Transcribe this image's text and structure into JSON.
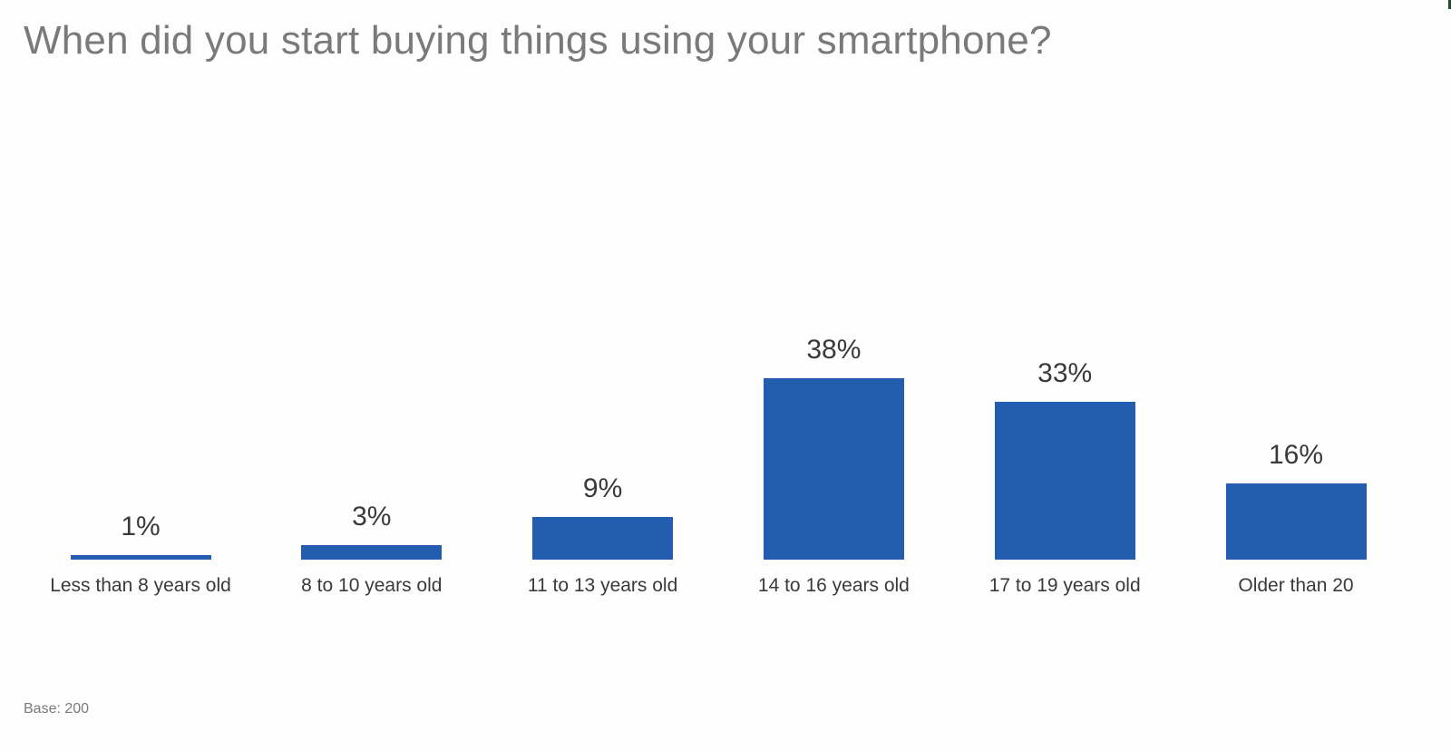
{
  "title": "When did you start buying things using your smartphone?",
  "footnote": "Base: 200",
  "colors": {
    "bar": "#235daf",
    "title": "#7a7a7a",
    "label": "#3a3a3a"
  },
  "chart_data": {
    "type": "bar",
    "title": "When did you start buying things using your smartphone?",
    "categories": [
      "Less than 8 years old",
      "8 to 10 years old",
      "11 to 13 years old",
      "14 to 16 years old",
      "17 to 19 years old",
      "Older than 20"
    ],
    "values": [
      1,
      3,
      9,
      38,
      33,
      16
    ],
    "value_labels": [
      "1%",
      "3%",
      "9%",
      "38%",
      "33%",
      "16%"
    ],
    "xlabel": "",
    "ylabel": "",
    "unit": "%",
    "grid": false,
    "legend": "none",
    "ylim": [
      0,
      40
    ],
    "note": "Base: 200"
  }
}
